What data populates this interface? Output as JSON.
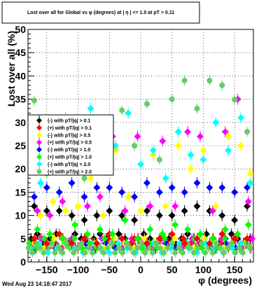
{
  "chart_data": {
    "type": "scatter",
    "title": "Lost over all for Global vs φ (degrees) at | η | <= 1.0 at pT > 0.11",
    "xlabel": "φ (degrees)",
    "ylabel": "Lost over all (%)",
    "xlim": [
      -180,
      180
    ],
    "ylim": [
      0,
      50
    ],
    "x_ticks": [
      -150,
      -100,
      -50,
      0,
      50,
      100,
      150
    ],
    "y_ticks": [
      0,
      5,
      10,
      15,
      20,
      25,
      30,
      35,
      40,
      45,
      50
    ],
    "grid": true,
    "legend_position": "left",
    "footer": "Wed Aug 23 14:18:47 2017",
    "series": [
      {
        "name": "(-) with pT/|q| > 0.1",
        "color": "#000000",
        "x": [
          -170,
          -150,
          -130,
          -110,
          -90,
          -70,
          -50,
          -30,
          -10,
          10,
          30,
          50,
          70,
          90,
          110,
          130,
          150,
          170
        ],
        "y": [
          12,
          11,
          11,
          10,
          9,
          10,
          11,
          10,
          9,
          11,
          10,
          10,
          11,
          12,
          11,
          10,
          9,
          12
        ]
      },
      {
        "name": "(+) with pT/|q| > 0.1",
        "color": "#ff0000",
        "x": [
          -170,
          -150,
          -130,
          -110,
          -90,
          -70,
          -50,
          -30,
          -10,
          10,
          30,
          50,
          70,
          90,
          110,
          130,
          150,
          170
        ],
        "y": [
          5,
          4,
          6,
          4,
          5,
          4,
          6,
          5,
          5,
          4,
          5,
          6,
          4,
          5,
          4,
          6,
          5,
          5
        ]
      },
      {
        "name": "(-) with pT/|q| > 0.5",
        "color": "#ffff00",
        "x": [
          -160,
          -140,
          -120,
          -100,
          -80,
          -60,
          -40,
          -20,
          0,
          20,
          40,
          60,
          80,
          100,
          120,
          140,
          160,
          175
        ],
        "y": [
          10,
          13,
          11,
          12,
          18,
          10,
          24,
          14,
          11,
          23,
          12,
          25,
          20,
          24,
          12,
          27,
          25,
          19
        ]
      },
      {
        "name": "(+) with pT/|q| > 0.5",
        "color": "#ff00ff",
        "x": [
          -165,
          -145,
          -125,
          -105,
          -85,
          -65,
          -45,
          -25,
          -5,
          15,
          35,
          55,
          75,
          95,
          115,
          135,
          155,
          172
        ],
        "y": [
          11,
          10,
          13,
          27,
          12,
          14,
          27,
          11,
          27,
          12,
          26,
          12,
          28,
          27,
          11,
          28,
          35,
          13
        ]
      },
      {
        "name": "(-) with pT/|q| > 1.0",
        "color": "#0000ff",
        "x": [
          -170,
          -150,
          -130,
          -110,
          -90,
          -70,
          -50,
          -30,
          -10,
          10,
          30,
          50,
          70,
          90,
          110,
          130,
          150,
          170
        ],
        "y": [
          14,
          16,
          15,
          17,
          14,
          16,
          16,
          15,
          14,
          17,
          15,
          16,
          15,
          17,
          16,
          16,
          15,
          16
        ]
      },
      {
        "name": "(+) with pT/|q| > 1.0",
        "color": "#00ff00",
        "x": [
          -165,
          -145,
          -125,
          -105,
          -85,
          -65,
          -45,
          -25,
          -5,
          15,
          35,
          55,
          75,
          95,
          115,
          135,
          155,
          172
        ],
        "y": [
          7,
          6,
          5,
          8,
          6,
          7,
          6,
          9,
          5,
          7,
          6,
          8,
          7,
          6,
          5,
          7,
          6,
          8
        ]
      },
      {
        "name": "(-) with pT/|q| > 2.0",
        "color": "#00ffff",
        "x": [
          -160,
          -140,
          -120,
          -100,
          -80,
          -60,
          -40,
          -20,
          0,
          20,
          40,
          60,
          80,
          100,
          120,
          140,
          160,
          175
        ],
        "y": [
          17,
          29,
          31,
          27,
          33,
          30,
          25,
          32,
          21,
          24,
          18,
          28,
          23,
          22,
          30,
          24,
          31,
          17
        ]
      },
      {
        "name": "(+) with pT/|q| > 2.0",
        "color": "#66cc66",
        "x": [
          -170,
          -150,
          -130,
          -110,
          -90,
          -70,
          -50,
          -30,
          -10,
          10,
          30,
          50,
          70,
          90,
          110,
          130,
          150,
          170
        ],
        "y": [
          34.7,
          19,
          22,
          24,
          18,
          30,
          26,
          32.6,
          25,
          34,
          22,
          35,
          39,
          33,
          39,
          38,
          34.9,
          28
        ]
      }
    ],
    "low_band": [
      {
        "color": "#000000",
        "x": [
          -175,
          -165,
          -155,
          -145,
          -135,
          -125,
          -115,
          -105,
          -95,
          -85,
          -75,
          -65,
          -55,
          -45,
          -35,
          -25,
          -15,
          -5,
          5,
          15,
          25,
          35,
          45,
          55,
          65,
          75,
          85,
          95,
          105,
          115,
          125,
          135,
          145,
          155,
          165,
          175
        ],
        "y": [
          5,
          6,
          4,
          5,
          6,
          5,
          4,
          6,
          5,
          4,
          5,
          6,
          5,
          4,
          6,
          5,
          4,
          5,
          6,
          5,
          4,
          6,
          5,
          4,
          5,
          6,
          5,
          4,
          6,
          5,
          4,
          5,
          6,
          5,
          4,
          5
        ]
      },
      {
        "color": "#ff0000",
        "x": [
          -172,
          -160,
          -148,
          -136,
          -124,
          -112,
          -100,
          -88,
          -76,
          -64,
          -52,
          -40,
          -28,
          -16,
          -4,
          8,
          20,
          32,
          44,
          56,
          68,
          80,
          92,
          104,
          116,
          128,
          140,
          152,
          164,
          176
        ],
        "y": [
          4,
          5,
          3,
          4,
          5,
          4,
          3,
          5,
          4,
          3,
          5,
          4,
          3,
          4,
          5,
          3,
          4,
          5,
          4,
          3,
          5,
          4,
          3,
          4,
          5,
          4,
          3,
          5,
          4,
          3
        ]
      },
      {
        "color": "#0000ff",
        "x": [
          -168,
          -152,
          -136,
          -120,
          -104,
          -88,
          -72,
          -56,
          -40,
          -24,
          -8,
          8,
          24,
          40,
          56,
          72,
          88,
          104,
          120,
          136,
          152,
          168
        ],
        "y": [
          3,
          4,
          3,
          4,
          3,
          4,
          3,
          4,
          3,
          4,
          3,
          4,
          3,
          4,
          3,
          4,
          3,
          4,
          3,
          4,
          3,
          4
        ]
      },
      {
        "color": "#ff00ff",
        "x": [
          -174,
          -158,
          -142,
          -126,
          -110,
          -94,
          -78,
          -62,
          -46,
          -30,
          -14,
          2,
          18,
          34,
          50,
          66,
          82,
          98,
          114,
          130,
          146,
          162,
          178
        ],
        "y": [
          3,
          5,
          4,
          3,
          5,
          4,
          3,
          5,
          4,
          3,
          5,
          4,
          3,
          5,
          4,
          3,
          5,
          4,
          3,
          5,
          4,
          3,
          5
        ]
      },
      {
        "color": "#ffff00",
        "x": [
          -170,
          -154,
          -138,
          -122,
          -106,
          -90,
          -74,
          -58,
          -42,
          -26,
          -10,
          6,
          22,
          38,
          54,
          70,
          86,
          102,
          118,
          134,
          150,
          166
        ],
        "y": [
          4,
          3,
          5,
          4,
          3,
          5,
          4,
          3,
          5,
          4,
          3,
          5,
          4,
          3,
          5,
          4,
          3,
          5,
          4,
          3,
          5,
          4
        ]
      },
      {
        "color": "#00ffff",
        "x": [
          -176,
          -162,
          -148,
          -134,
          -120,
          -106,
          -92,
          -78,
          -64,
          -50,
          -36,
          -22,
          -8,
          6,
          20,
          34,
          48,
          62,
          76,
          90,
          104,
          118,
          132,
          146,
          160,
          174
        ],
        "y": [
          3,
          4,
          2,
          3,
          4,
          3,
          2,
          4,
          3,
          2,
          4,
          3,
          2,
          3,
          4,
          2,
          3,
          4,
          3,
          2,
          4,
          3,
          2,
          3,
          4,
          3
        ]
      },
      {
        "color": "#00ff00",
        "x": [
          -178,
          -166,
          -154,
          -142,
          -130,
          -118,
          -106,
          -94,
          -82,
          -70,
          -58,
          -46,
          -34,
          -22,
          -10,
          2,
          14,
          26,
          38,
          50,
          62,
          74,
          86,
          98,
          110,
          122,
          134,
          146,
          158,
          170
        ],
        "y": [
          4,
          3,
          5,
          4,
          3,
          4,
          5,
          3,
          4,
          3,
          5,
          4,
          3,
          4,
          5,
          3,
          4,
          3,
          5,
          4,
          3,
          4,
          5,
          3,
          4,
          3,
          5,
          4,
          3,
          4
        ]
      },
      {
        "color": "#66cc66",
        "x": [
          -179,
          -173,
          -167,
          -161,
          -155,
          -149,
          -143,
          -137,
          -131,
          -125,
          -119,
          -113,
          -107,
          -101,
          -95,
          -89,
          -83,
          -77,
          -71,
          -65,
          -59,
          -53,
          -47,
          -41,
          -35,
          -29,
          -23,
          -17,
          -11,
          -5,
          1,
          7,
          13,
          19,
          25,
          31,
          37,
          43,
          49,
          55,
          61,
          67,
          73,
          79,
          85,
          91,
          97,
          103,
          109,
          115,
          121,
          127,
          133,
          139,
          145,
          151,
          157,
          163,
          169,
          175
        ],
        "y": [
          3,
          2,
          4,
          3,
          2,
          3,
          4,
          2,
          3,
          2,
          4,
          3,
          2,
          3,
          4,
          2,
          3,
          2,
          4,
          3,
          2,
          3,
          4,
          2,
          3,
          2,
          4,
          3,
          2,
          3,
          4,
          2,
          3,
          2,
          4,
          3,
          2,
          3,
          4,
          2,
          3,
          2,
          4,
          3,
          2,
          3,
          4,
          2,
          3,
          2,
          4,
          3,
          2,
          3,
          4,
          2,
          3,
          2,
          4,
          3
        ]
      }
    ]
  }
}
